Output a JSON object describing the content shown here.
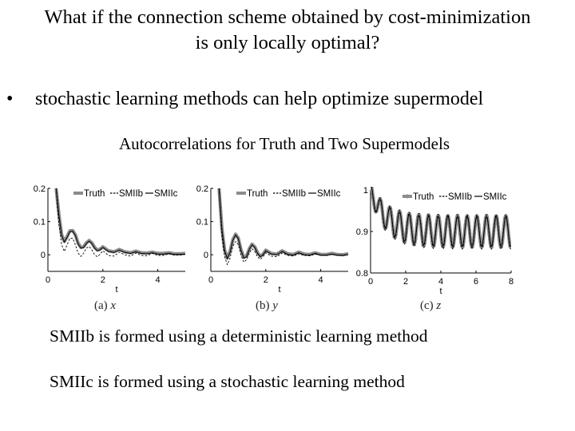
{
  "slide": {
    "title_line1": "What if the connection scheme obtained by cost-minimization",
    "title_line2": "is only locally optimal?",
    "bullet_symbol": "•",
    "bullet_text": "stochastic learning methods  can help optimize supermodel",
    "figure_title": "Autocorrelations  for Truth and Two Supermodels",
    "note1": "SMIIb is formed using a deterministic  learning method",
    "note2": "SMIIc is formed using a stochastic learning method"
  },
  "captions": [
    {
      "label": "(a)",
      "var": "x"
    },
    {
      "label": "(b)",
      "var": "y"
    },
    {
      "label": "(c)",
      "var": "z"
    }
  ],
  "colors": {
    "truth": "#8c8c8c",
    "smiib": "#000000",
    "smiic": "#000000"
  },
  "chart_data": [
    {
      "type": "line",
      "xlabel": "t",
      "xlim": [
        0,
        5
      ],
      "ylim": [
        -0.05,
        0.2
      ],
      "xticks": [
        0,
        2,
        4
      ],
      "yticks": [
        0,
        0.1,
        0.2
      ],
      "ytick_labels": [
        "0",
        "0.1",
        "0.2"
      ],
      "legend": [
        "Truth",
        "SMIIb",
        "SMIIc"
      ],
      "legend_position": "top",
      "grid": false,
      "series": [
        {
          "name": "Truth",
          "style": "thick-gray",
          "x": [
            0.3,
            0.4,
            0.5,
            0.6,
            0.7,
            0.8,
            0.9,
            1.0,
            1.1,
            1.2,
            1.3,
            1.4,
            1.5,
            1.6,
            1.7,
            1.8,
            1.9,
            2.0,
            2.2,
            2.4,
            2.6,
            2.8,
            3.0,
            3.2,
            3.4,
            3.6,
            3.8,
            4.0,
            4.2,
            4.4,
            4.6,
            4.8,
            5.0
          ],
          "y": [
            0.2,
            0.12,
            0.06,
            0.04,
            0.055,
            0.072,
            0.073,
            0.06,
            0.035,
            0.022,
            0.024,
            0.036,
            0.043,
            0.036,
            0.022,
            0.014,
            0.017,
            0.024,
            0.012,
            0.009,
            0.016,
            0.009,
            0.006,
            0.011,
            0.006,
            0.005,
            0.008,
            0.004,
            0.004,
            0.006,
            0.003,
            0.003,
            0.004
          ]
        },
        {
          "name": "SMIIb",
          "style": "dashed",
          "x": [
            0.3,
            0.4,
            0.5,
            0.6,
            0.7,
            0.8,
            0.9,
            1.0,
            1.1,
            1.2,
            1.3,
            1.4,
            1.5,
            1.6,
            1.7,
            1.8,
            1.9,
            2.0,
            2.2,
            2.4,
            2.6,
            2.8,
            3.0,
            3.2,
            3.4,
            3.6,
            3.8,
            4.0,
            4.2,
            4.4,
            4.6,
            4.8,
            5.0
          ],
          "y": [
            0.2,
            0.09,
            0.03,
            0.01,
            0.03,
            0.05,
            0.05,
            0.03,
            0.005,
            -0.005,
            0.005,
            0.02,
            0.025,
            0.015,
            0.0,
            -0.006,
            0.002,
            0.012,
            -0.002,
            -0.004,
            0.008,
            0.0,
            -0.004,
            0.005,
            -0.002,
            -0.003,
            0.004,
            -0.002,
            -0.002,
            0.003,
            -0.001,
            -0.001,
            0.002
          ]
        },
        {
          "name": "SMIIc",
          "style": "solid-thin",
          "x": [
            0.3,
            0.4,
            0.5,
            0.6,
            0.7,
            0.8,
            0.9,
            1.0,
            1.1,
            1.2,
            1.3,
            1.4,
            1.5,
            1.6,
            1.7,
            1.8,
            1.9,
            2.0,
            2.2,
            2.4,
            2.6,
            2.8,
            3.0,
            3.2,
            3.4,
            3.6,
            3.8,
            4.0,
            4.2,
            4.4,
            4.6,
            4.8,
            5.0
          ],
          "y": [
            0.2,
            0.118,
            0.058,
            0.038,
            0.053,
            0.07,
            0.071,
            0.058,
            0.033,
            0.02,
            0.022,
            0.034,
            0.041,
            0.034,
            0.02,
            0.012,
            0.015,
            0.022,
            0.01,
            0.007,
            0.014,
            0.007,
            0.004,
            0.009,
            0.004,
            0.003,
            0.006,
            0.002,
            0.002,
            0.004,
            0.001,
            0.001,
            0.002
          ]
        }
      ]
    },
    {
      "type": "line",
      "xlabel": "t",
      "xlim": [
        0,
        5
      ],
      "ylim": [
        -0.05,
        0.2
      ],
      "xticks": [
        0,
        2,
        4
      ],
      "yticks": [
        0,
        0.1,
        0.2
      ],
      "ytick_labels": [
        "0",
        "0.1",
        "0.2"
      ],
      "legend": [
        "Truth",
        "SMIIb",
        "SMIIc"
      ],
      "legend_position": "top",
      "grid": false,
      "series": [
        {
          "name": "Truth",
          "style": "thick-gray",
          "x": [
            0.3,
            0.4,
            0.5,
            0.6,
            0.7,
            0.8,
            0.9,
            1.0,
            1.1,
            1.2,
            1.3,
            1.4,
            1.5,
            1.6,
            1.7,
            1.8,
            1.9,
            2.0,
            2.2,
            2.4,
            2.6,
            2.8,
            3.0,
            3.2,
            3.4,
            3.6,
            3.8,
            4.0,
            4.2,
            4.4,
            4.6,
            4.8,
            5.0
          ],
          "y": [
            0.2,
            0.08,
            0.015,
            -0.01,
            0.01,
            0.045,
            0.062,
            0.05,
            0.015,
            -0.008,
            -0.004,
            0.018,
            0.032,
            0.024,
            0.006,
            -0.004,
            0.002,
            0.014,
            0.004,
            0.002,
            0.012,
            0.003,
            0.001,
            0.008,
            0.002,
            0.001,
            0.006,
            0.001,
            0.001,
            0.004,
            0.001,
            0.0,
            0.003
          ]
        },
        {
          "name": "SMIIb",
          "style": "dashed",
          "x": [
            0.3,
            0.4,
            0.5,
            0.6,
            0.7,
            0.8,
            0.9,
            1.0,
            1.1,
            1.2,
            1.3,
            1.4,
            1.5,
            1.6,
            1.7,
            1.8,
            1.9,
            2.0,
            2.2,
            2.4,
            2.6,
            2.8,
            3.0,
            3.2,
            3.4,
            3.6,
            3.8,
            4.0,
            4.2,
            4.4,
            4.6,
            4.8,
            5.0
          ],
          "y": [
            0.2,
            0.06,
            -0.005,
            -0.03,
            -0.01,
            0.025,
            0.04,
            0.03,
            -0.002,
            -0.022,
            -0.015,
            0.005,
            0.018,
            0.01,
            -0.006,
            -0.014,
            -0.006,
            0.006,
            -0.004,
            -0.006,
            0.005,
            -0.002,
            -0.004,
            0.003,
            -0.002,
            -0.003,
            0.002,
            -0.001,
            -0.002,
            0.002,
            -0.001,
            -0.001,
            0.001
          ]
        },
        {
          "name": "SMIIc",
          "style": "solid-thin",
          "x": [
            0.3,
            0.4,
            0.5,
            0.6,
            0.7,
            0.8,
            0.9,
            1.0,
            1.1,
            1.2,
            1.3,
            1.4,
            1.5,
            1.6,
            1.7,
            1.8,
            1.9,
            2.0,
            2.2,
            2.4,
            2.6,
            2.8,
            3.0,
            3.2,
            3.4,
            3.6,
            3.8,
            4.0,
            4.2,
            4.4,
            4.6,
            4.8,
            5.0
          ],
          "y": [
            0.2,
            0.078,
            0.013,
            -0.012,
            0.008,
            0.043,
            0.06,
            0.048,
            0.013,
            -0.01,
            -0.006,
            0.016,
            0.03,
            0.022,
            0.004,
            -0.006,
            0.0,
            0.012,
            0.002,
            0.0,
            0.01,
            0.001,
            -0.001,
            0.006,
            0.0,
            -0.001,
            0.004,
            -0.001,
            -0.001,
            0.002,
            -0.001,
            -0.002,
            0.001
          ]
        }
      ]
    },
    {
      "type": "line",
      "xlabel": "t",
      "xlim": [
        0,
        8
      ],
      "ylim": [
        0.8,
        1.0
      ],
      "xticks": [
        0,
        2,
        4,
        6,
        8
      ],
      "yticks": [
        0.8,
        0.9,
        1.0
      ],
      "ytick_labels": [
        "0.8",
        "0.9",
        "1"
      ],
      "legend": [
        "Truth",
        "SMIIb",
        "SMIIc"
      ],
      "legend_position": "top",
      "grid": false,
      "oscillation_period": 0.55,
      "series": [
        {
          "name": "Truth",
          "style": "thick-gray-markers",
          "center": 0.9,
          "amplitude": 0.038,
          "start": 1.0
        },
        {
          "name": "SMIIb",
          "style": "dashed",
          "center": 0.899,
          "amplitude": 0.042,
          "start": 1.0
        },
        {
          "name": "SMIIc",
          "style": "solid-thin",
          "center": 0.9,
          "amplitude": 0.036,
          "start": 1.0
        }
      ]
    }
  ]
}
